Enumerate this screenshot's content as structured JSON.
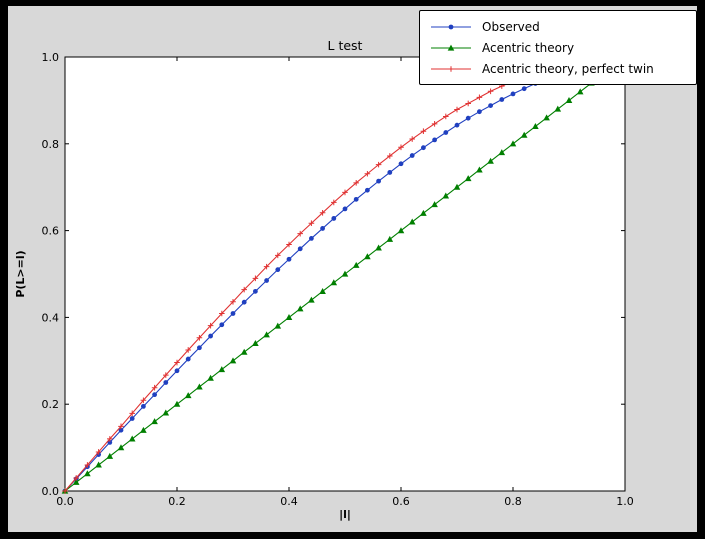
{
  "figure": {
    "outer_background": "#000000",
    "background": "#d8d8d8",
    "plot_background": "#ffffff",
    "frame_color": "#000000"
  },
  "chart_data": {
    "type": "line",
    "title": "L test",
    "xlabel": "|l|",
    "ylabel": "P(L>=l)",
    "xlim": [
      0,
      1
    ],
    "ylim": [
      0,
      1
    ],
    "xticks": [
      0,
      0.2,
      0.4,
      0.6,
      0.8,
      1
    ],
    "yticks": [
      0,
      0.2,
      0.4,
      0.6,
      0.8,
      1
    ],
    "grid": false,
    "legend_position": "upper right",
    "series": [
      {
        "name": "Observed",
        "color": "#2040c0",
        "marker": "circle",
        "x": [
          0,
          0.02,
          0.04,
          0.06,
          0.08,
          0.1,
          0.12,
          0.14,
          0.16,
          0.18,
          0.2,
          0.22,
          0.24,
          0.26,
          0.28,
          0.3,
          0.32,
          0.34,
          0.36,
          0.38,
          0.4,
          0.42,
          0.44,
          0.46,
          0.48,
          0.5,
          0.52,
          0.54,
          0.56,
          0.58,
          0.6,
          0.62,
          0.64,
          0.66,
          0.68,
          0.7,
          0.72,
          0.74,
          0.76,
          0.78,
          0.8,
          0.82,
          0.84,
          0.86
        ],
        "y": [
          0,
          0.028,
          0.056,
          0.084,
          0.112,
          0.14,
          0.167,
          0.195,
          0.222,
          0.25,
          0.277,
          0.304,
          0.33,
          0.357,
          0.383,
          0.409,
          0.435,
          0.46,
          0.485,
          0.51,
          0.534,
          0.558,
          0.582,
          0.605,
          0.628,
          0.65,
          0.672,
          0.693,
          0.714,
          0.734,
          0.754,
          0.773,
          0.791,
          0.809,
          0.826,
          0.843,
          0.859,
          0.874,
          0.888,
          0.902,
          0.915,
          0.927,
          0.939,
          0.95
        ]
      },
      {
        "name": "Acentric theory",
        "color": "#007f00",
        "marker": "triangle",
        "x": [
          0,
          0.02,
          0.04,
          0.06,
          0.08,
          0.1,
          0.12,
          0.14,
          0.16,
          0.18,
          0.2,
          0.22,
          0.24,
          0.26,
          0.28,
          0.3,
          0.32,
          0.34,
          0.36,
          0.38,
          0.4,
          0.42,
          0.44,
          0.46,
          0.48,
          0.5,
          0.52,
          0.54,
          0.56,
          0.58,
          0.6,
          0.62,
          0.64,
          0.66,
          0.68,
          0.7,
          0.72,
          0.74,
          0.76,
          0.78,
          0.8,
          0.82,
          0.84,
          0.86,
          0.88,
          0.9,
          0.92,
          0.94,
          0.96
        ],
        "y": [
          0,
          0.02,
          0.04,
          0.06,
          0.08,
          0.1,
          0.12,
          0.14,
          0.16,
          0.18,
          0.2,
          0.22,
          0.24,
          0.26,
          0.28,
          0.3,
          0.32,
          0.34,
          0.36,
          0.38,
          0.4,
          0.42,
          0.44,
          0.46,
          0.48,
          0.5,
          0.52,
          0.54,
          0.56,
          0.58,
          0.6,
          0.62,
          0.64,
          0.66,
          0.68,
          0.7,
          0.72,
          0.74,
          0.76,
          0.78,
          0.8,
          0.82,
          0.84,
          0.86,
          0.88,
          0.9,
          0.92,
          0.94,
          0.96
        ]
      },
      {
        "name": "Acentric theory, perfect twin",
        "color": "#e03232",
        "marker": "plus",
        "x": [
          0,
          0.02,
          0.04,
          0.06,
          0.08,
          0.1,
          0.12,
          0.14,
          0.16,
          0.18,
          0.2,
          0.22,
          0.24,
          0.26,
          0.28,
          0.3,
          0.32,
          0.34,
          0.36,
          0.38,
          0.4,
          0.42,
          0.44,
          0.46,
          0.48,
          0.5,
          0.52,
          0.54,
          0.56,
          0.58,
          0.6,
          0.62,
          0.64,
          0.66,
          0.68,
          0.7,
          0.72,
          0.74,
          0.76,
          0.78,
          0.8,
          0.82,
          0.84,
          0.86,
          0.88
        ],
        "y": [
          0,
          0.03,
          0.06,
          0.09,
          0.12,
          0.149,
          0.179,
          0.209,
          0.238,
          0.267,
          0.296,
          0.325,
          0.353,
          0.381,
          0.409,
          0.436,
          0.464,
          0.49,
          0.517,
          0.543,
          0.568,
          0.593,
          0.617,
          0.641,
          0.665,
          0.688,
          0.71,
          0.731,
          0.752,
          0.772,
          0.792,
          0.811,
          0.829,
          0.846,
          0.863,
          0.879,
          0.893,
          0.907,
          0.921,
          0.933,
          0.944,
          0.954,
          0.964,
          0.972,
          0.979
        ]
      }
    ]
  }
}
